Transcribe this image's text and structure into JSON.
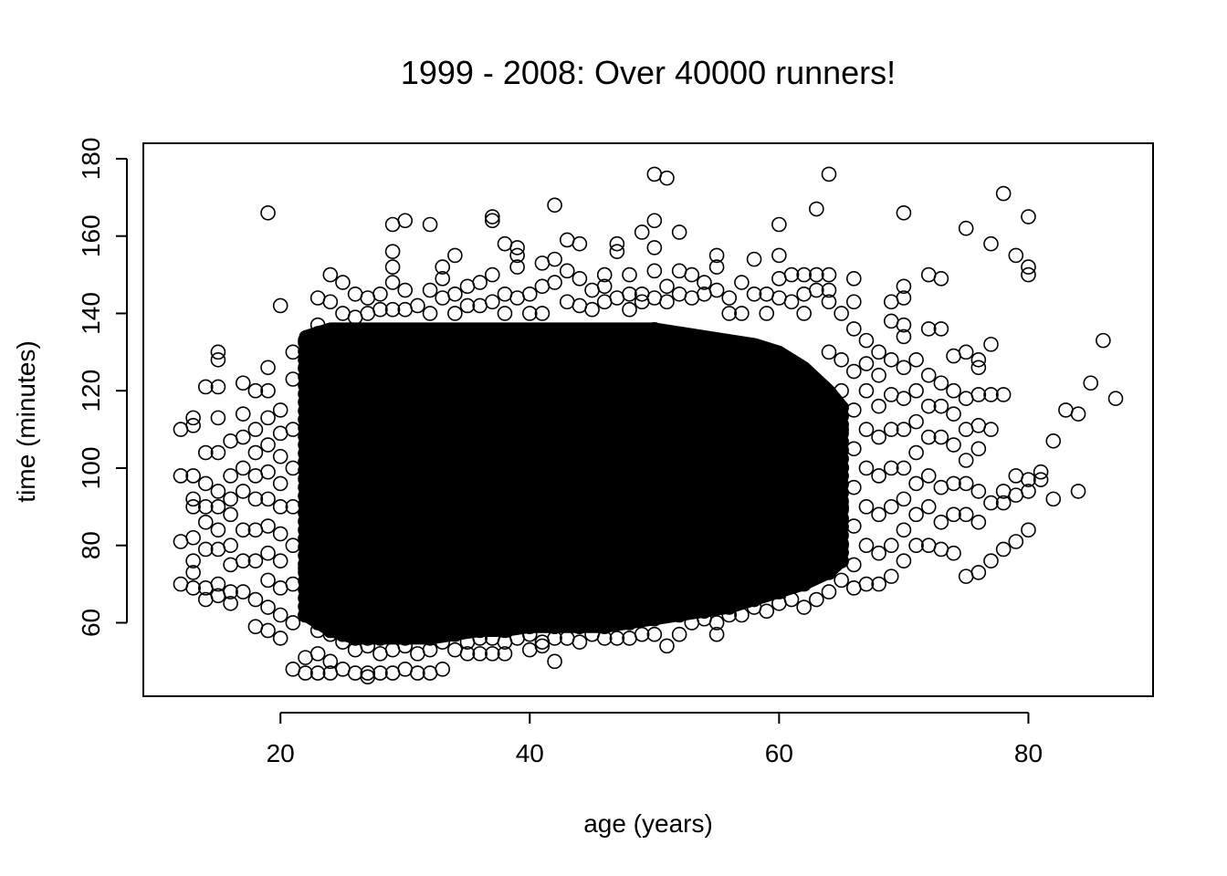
{
  "chart_data": {
    "type": "scatter",
    "title": "1999 - 2008: Over 40000 runners!",
    "xlabel": "age (years)",
    "ylabel": "time (minutes)",
    "xlim": [
      9,
      90
    ],
    "ylim": [
      41,
      184
    ],
    "xticks": [
      20,
      40,
      60,
      80
    ],
    "yticks": [
      60,
      80,
      100,
      120,
      140,
      160,
      180
    ],
    "grid": false,
    "legend": "none",
    "marker": "open-circle",
    "marker_color": "#000000",
    "points": [
      [
        12,
        110
      ],
      [
        12,
        98
      ],
      [
        12,
        81
      ],
      [
        12,
        70
      ],
      [
        13,
        113
      ],
      [
        13,
        111
      ],
      [
        13,
        98
      ],
      [
        13,
        92
      ],
      [
        13,
        90
      ],
      [
        13,
        82
      ],
      [
        13,
        76
      ],
      [
        13,
        73
      ],
      [
        13,
        69
      ],
      [
        14,
        121
      ],
      [
        14,
        104
      ],
      [
        14,
        96
      ],
      [
        14,
        90
      ],
      [
        14,
        86
      ],
      [
        14,
        79
      ],
      [
        14,
        69
      ],
      [
        14,
        66
      ],
      [
        15,
        130
      ],
      [
        15,
        128
      ],
      [
        15,
        121
      ],
      [
        15,
        113
      ],
      [
        15,
        104
      ],
      [
        15,
        94
      ],
      [
        15,
        90
      ],
      [
        15,
        84
      ],
      [
        15,
        79
      ],
      [
        15,
        70
      ],
      [
        15,
        67
      ],
      [
        16,
        107
      ],
      [
        16,
        98
      ],
      [
        16,
        92
      ],
      [
        16,
        88
      ],
      [
        16,
        80
      ],
      [
        16,
        75
      ],
      [
        16,
        68
      ],
      [
        16,
        65
      ],
      [
        17,
        122
      ],
      [
        17,
        114
      ],
      [
        17,
        108
      ],
      [
        17,
        100
      ],
      [
        17,
        94
      ],
      [
        17,
        84
      ],
      [
        17,
        76
      ],
      [
        17,
        68
      ],
      [
        18,
        120
      ],
      [
        18,
        110
      ],
      [
        18,
        104
      ],
      [
        18,
        98
      ],
      [
        18,
        92
      ],
      [
        18,
        84
      ],
      [
        18,
        76
      ],
      [
        18,
        66
      ],
      [
        18,
        59
      ],
      [
        19,
        166
      ],
      [
        19,
        126
      ],
      [
        19,
        120
      ],
      [
        19,
        113
      ],
      [
        19,
        106
      ],
      [
        19,
        99
      ],
      [
        19,
        92
      ],
      [
        19,
        85
      ],
      [
        19,
        78
      ],
      [
        19,
        71
      ],
      [
        19,
        64
      ],
      [
        19,
        58
      ],
      [
        20,
        142
      ],
      [
        20,
        115
      ],
      [
        20,
        109
      ],
      [
        20,
        103
      ],
      [
        20,
        96
      ],
      [
        20,
        90
      ],
      [
        20,
        83
      ],
      [
        20,
        76
      ],
      [
        20,
        69
      ],
      [
        20,
        62
      ],
      [
        20,
        56
      ],
      [
        21,
        130
      ],
      [
        21,
        123
      ],
      [
        21,
        110
      ],
      [
        21,
        100
      ],
      [
        21,
        90
      ],
      [
        21,
        80
      ],
      [
        21,
        70
      ],
      [
        21,
        60
      ],
      [
        21,
        48
      ],
      [
        22,
        133
      ],
      [
        22,
        126
      ],
      [
        22,
        74
      ],
      [
        22,
        62
      ],
      [
        22,
        51
      ],
      [
        22,
        47
      ],
      [
        23,
        144
      ],
      [
        23,
        137
      ],
      [
        23,
        58
      ],
      [
        23,
        52
      ],
      [
        23,
        47
      ],
      [
        24,
        150
      ],
      [
        24,
        143
      ],
      [
        24,
        57
      ],
      [
        24,
        50
      ],
      [
        24,
        47
      ],
      [
        25,
        148
      ],
      [
        25,
        140
      ],
      [
        25,
        55
      ],
      [
        25,
        48
      ],
      [
        26,
        145
      ],
      [
        26,
        139
      ],
      [
        26,
        53
      ],
      [
        26,
        47
      ],
      [
        27,
        144
      ],
      [
        27,
        140
      ],
      [
        27,
        54
      ],
      [
        27,
        47
      ],
      [
        27,
        46
      ],
      [
        28,
        145
      ],
      [
        28,
        141
      ],
      [
        28,
        52
      ],
      [
        28,
        47
      ],
      [
        29,
        156
      ],
      [
        29,
        152
      ],
      [
        29,
        163
      ],
      [
        29,
        148
      ],
      [
        29,
        141
      ],
      [
        29,
        53
      ],
      [
        29,
        47
      ],
      [
        30,
        164
      ],
      [
        30,
        146
      ],
      [
        30,
        141
      ],
      [
        30,
        54
      ],
      [
        30,
        48
      ],
      [
        31,
        142
      ],
      [
        31,
        52
      ],
      [
        31,
        47
      ],
      [
        32,
        163
      ],
      [
        32,
        146
      ],
      [
        32,
        140
      ],
      [
        32,
        53
      ],
      [
        32,
        47
      ],
      [
        33,
        152
      ],
      [
        33,
        149
      ],
      [
        33,
        144
      ],
      [
        33,
        55
      ],
      [
        33,
        48
      ],
      [
        34,
        155
      ],
      [
        34,
        145
      ],
      [
        34,
        140
      ],
      [
        34,
        53
      ],
      [
        35,
        147
      ],
      [
        35,
        142
      ],
      [
        35,
        55
      ],
      [
        35,
        52
      ],
      [
        36,
        148
      ],
      [
        36,
        142
      ],
      [
        36,
        56
      ],
      [
        36,
        52
      ],
      [
        37,
        165
      ],
      [
        37,
        164
      ],
      [
        37,
        150
      ],
      [
        37,
        143
      ],
      [
        37,
        56
      ],
      [
        37,
        52
      ],
      [
        38,
        158
      ],
      [
        38,
        145
      ],
      [
        38,
        140
      ],
      [
        38,
        55
      ],
      [
        38,
        52
      ],
      [
        39,
        157
      ],
      [
        39,
        155
      ],
      [
        39,
        152
      ],
      [
        39,
        144
      ],
      [
        39,
        56
      ],
      [
        40,
        145
      ],
      [
        40,
        140
      ],
      [
        40,
        57
      ],
      [
        40,
        53
      ],
      [
        41,
        147
      ],
      [
        41,
        153
      ],
      [
        41,
        140
      ],
      [
        41,
        55
      ],
      [
        41,
        54
      ],
      [
        42,
        168
      ],
      [
        42,
        154
      ],
      [
        42,
        148
      ],
      [
        42,
        56
      ],
      [
        42,
        50
      ],
      [
        43,
        159
      ],
      [
        43,
        151
      ],
      [
        43,
        143
      ],
      [
        43,
        56
      ],
      [
        44,
        158
      ],
      [
        44,
        149
      ],
      [
        44,
        142
      ],
      [
        44,
        55
      ],
      [
        45,
        146
      ],
      [
        45,
        141
      ],
      [
        45,
        57
      ],
      [
        46,
        150
      ],
      [
        46,
        147
      ],
      [
        46,
        143
      ],
      [
        46,
        56
      ],
      [
        47,
        158
      ],
      [
        47,
        156
      ],
      [
        47,
        144
      ],
      [
        47,
        56
      ],
      [
        48,
        150
      ],
      [
        48,
        145
      ],
      [
        48,
        141
      ],
      [
        48,
        56
      ],
      [
        49,
        161
      ],
      [
        49,
        145
      ],
      [
        49,
        143
      ],
      [
        49,
        57
      ],
      [
        50,
        176
      ],
      [
        50,
        164
      ],
      [
        50,
        157
      ],
      [
        50,
        151
      ],
      [
        50,
        144
      ],
      [
        50,
        57
      ],
      [
        51,
        175
      ],
      [
        51,
        147
      ],
      [
        51,
        143
      ],
      [
        51,
        54
      ],
      [
        52,
        161
      ],
      [
        52,
        151
      ],
      [
        52,
        145
      ],
      [
        52,
        57
      ],
      [
        53,
        150
      ],
      [
        53,
        144
      ],
      [
        53,
        60
      ],
      [
        54,
        148
      ],
      [
        54,
        145
      ],
      [
        54,
        61
      ],
      [
        55,
        155
      ],
      [
        55,
        152
      ],
      [
        55,
        146
      ],
      [
        55,
        60
      ],
      [
        55,
        57
      ],
      [
        56,
        144
      ],
      [
        56,
        140
      ],
      [
        56,
        62
      ],
      [
        57,
        148
      ],
      [
        57,
        140
      ],
      [
        57,
        62
      ],
      [
        58,
        154
      ],
      [
        58,
        145
      ],
      [
        58,
        64
      ],
      [
        59,
        145
      ],
      [
        59,
        140
      ],
      [
        59,
        63
      ],
      [
        60,
        163
      ],
      [
        60,
        155
      ],
      [
        60,
        149
      ],
      [
        60,
        144
      ],
      [
        60,
        65
      ],
      [
        61,
        150
      ],
      [
        61,
        143
      ],
      [
        61,
        66
      ],
      [
        62,
        150
      ],
      [
        62,
        145
      ],
      [
        62,
        140
      ],
      [
        62,
        64
      ],
      [
        63,
        167
      ],
      [
        63,
        150
      ],
      [
        63,
        146
      ],
      [
        63,
        66
      ],
      [
        64,
        176
      ],
      [
        64,
        150
      ],
      [
        64,
        146
      ],
      [
        64,
        143
      ],
      [
        64,
        130
      ],
      [
        64,
        68
      ],
      [
        65,
        140
      ],
      [
        65,
        128
      ],
      [
        65,
        120
      ],
      [
        65,
        110
      ],
      [
        65,
        100
      ],
      [
        65,
        90
      ],
      [
        65,
        80
      ],
      [
        65,
        71
      ],
      [
        66,
        149
      ],
      [
        66,
        143
      ],
      [
        66,
        136
      ],
      [
        66,
        125
      ],
      [
        66,
        115
      ],
      [
        66,
        105
      ],
      [
        66,
        95
      ],
      [
        66,
        85
      ],
      [
        66,
        75
      ],
      [
        66,
        69
      ],
      [
        67,
        133
      ],
      [
        67,
        127
      ],
      [
        67,
        120
      ],
      [
        67,
        110
      ],
      [
        67,
        100
      ],
      [
        67,
        90
      ],
      [
        67,
        80
      ],
      [
        67,
        70
      ],
      [
        68,
        130
      ],
      [
        68,
        124
      ],
      [
        68,
        116
      ],
      [
        68,
        108
      ],
      [
        68,
        98
      ],
      [
        68,
        88
      ],
      [
        68,
        78
      ],
      [
        68,
        70
      ],
      [
        69,
        143
      ],
      [
        69,
        138
      ],
      [
        69,
        128
      ],
      [
        69,
        119
      ],
      [
        69,
        110
      ],
      [
        69,
        100
      ],
      [
        69,
        90
      ],
      [
        69,
        80
      ],
      [
        69,
        72
      ],
      [
        70,
        166
      ],
      [
        70,
        147
      ],
      [
        70,
        144
      ],
      [
        70,
        137
      ],
      [
        70,
        134
      ],
      [
        70,
        126
      ],
      [
        70,
        118
      ],
      [
        70,
        110
      ],
      [
        70,
        100
      ],
      [
        70,
        92
      ],
      [
        70,
        84
      ],
      [
        70,
        76
      ],
      [
        71,
        128
      ],
      [
        71,
        120
      ],
      [
        71,
        112
      ],
      [
        71,
        104
      ],
      [
        71,
        96
      ],
      [
        71,
        88
      ],
      [
        71,
        80
      ],
      [
        72,
        150
      ],
      [
        72,
        136
      ],
      [
        72,
        124
      ],
      [
        72,
        116
      ],
      [
        72,
        108
      ],
      [
        72,
        98
      ],
      [
        72,
        90
      ],
      [
        72,
        80
      ],
      [
        73,
        149
      ],
      [
        73,
        136
      ],
      [
        73,
        122
      ],
      [
        73,
        116
      ],
      [
        73,
        108
      ],
      [
        73,
        95
      ],
      [
        73,
        86
      ],
      [
        73,
        79
      ],
      [
        74,
        129
      ],
      [
        74,
        120
      ],
      [
        74,
        114
      ],
      [
        74,
        106
      ],
      [
        74,
        96
      ],
      [
        74,
        88
      ],
      [
        74,
        78
      ],
      [
        75,
        162
      ],
      [
        75,
        130
      ],
      [
        75,
        118
      ],
      [
        75,
        110
      ],
      [
        75,
        102
      ],
      [
        75,
        96
      ],
      [
        75,
        88
      ],
      [
        75,
        72
      ],
      [
        76,
        128
      ],
      [
        76,
        126
      ],
      [
        76,
        119
      ],
      [
        76,
        111
      ],
      [
        76,
        105
      ],
      [
        76,
        94
      ],
      [
        76,
        86
      ],
      [
        76,
        73
      ],
      [
        77,
        158
      ],
      [
        77,
        132
      ],
      [
        77,
        119
      ],
      [
        77,
        110
      ],
      [
        77,
        91
      ],
      [
        77,
        76
      ],
      [
        78,
        171
      ],
      [
        78,
        119
      ],
      [
        78,
        94
      ],
      [
        78,
        91
      ],
      [
        78,
        79
      ],
      [
        79,
        155
      ],
      [
        79,
        98
      ],
      [
        79,
        93
      ],
      [
        79,
        81
      ],
      [
        80,
        165
      ],
      [
        80,
        152
      ],
      [
        80,
        150
      ],
      [
        80,
        97
      ],
      [
        80,
        94
      ],
      [
        80,
        84
      ],
      [
        81,
        99
      ],
      [
        81,
        97
      ],
      [
        82,
        107
      ],
      [
        82,
        92
      ],
      [
        83,
        115
      ],
      [
        84,
        114
      ],
      [
        84,
        94
      ],
      [
        85,
        122
      ],
      [
        86,
        133
      ],
      [
        87,
        118
      ]
    ],
    "dense_core": {
      "x_range": [
        22,
        65
      ],
      "profile": [
        [
          22,
          62,
          134
        ],
        [
          23,
          60,
          135
        ],
        [
          24,
          58,
          136
        ],
        [
          25,
          57,
          136
        ],
        [
          26,
          56,
          136
        ],
        [
          27,
          56,
          136
        ],
        [
          28,
          56,
          136
        ],
        [
          30,
          56,
          136
        ],
        [
          32,
          56,
          136
        ],
        [
          34,
          57,
          136
        ],
        [
          36,
          58,
          136
        ],
        [
          38,
          58,
          136
        ],
        [
          40,
          59,
          136
        ],
        [
          42,
          59,
          136
        ],
        [
          44,
          59,
          136
        ],
        [
          46,
          59,
          136
        ],
        [
          48,
          60,
          136
        ],
        [
          50,
          61,
          136
        ],
        [
          52,
          62,
          135
        ],
        [
          54,
          63,
          134
        ],
        [
          56,
          64,
          133
        ],
        [
          58,
          66,
          132
        ],
        [
          60,
          68,
          130
        ],
        [
          62,
          70,
          126
        ],
        [
          64,
          73,
          120
        ],
        [
          65,
          76,
          116
        ]
      ]
    }
  }
}
